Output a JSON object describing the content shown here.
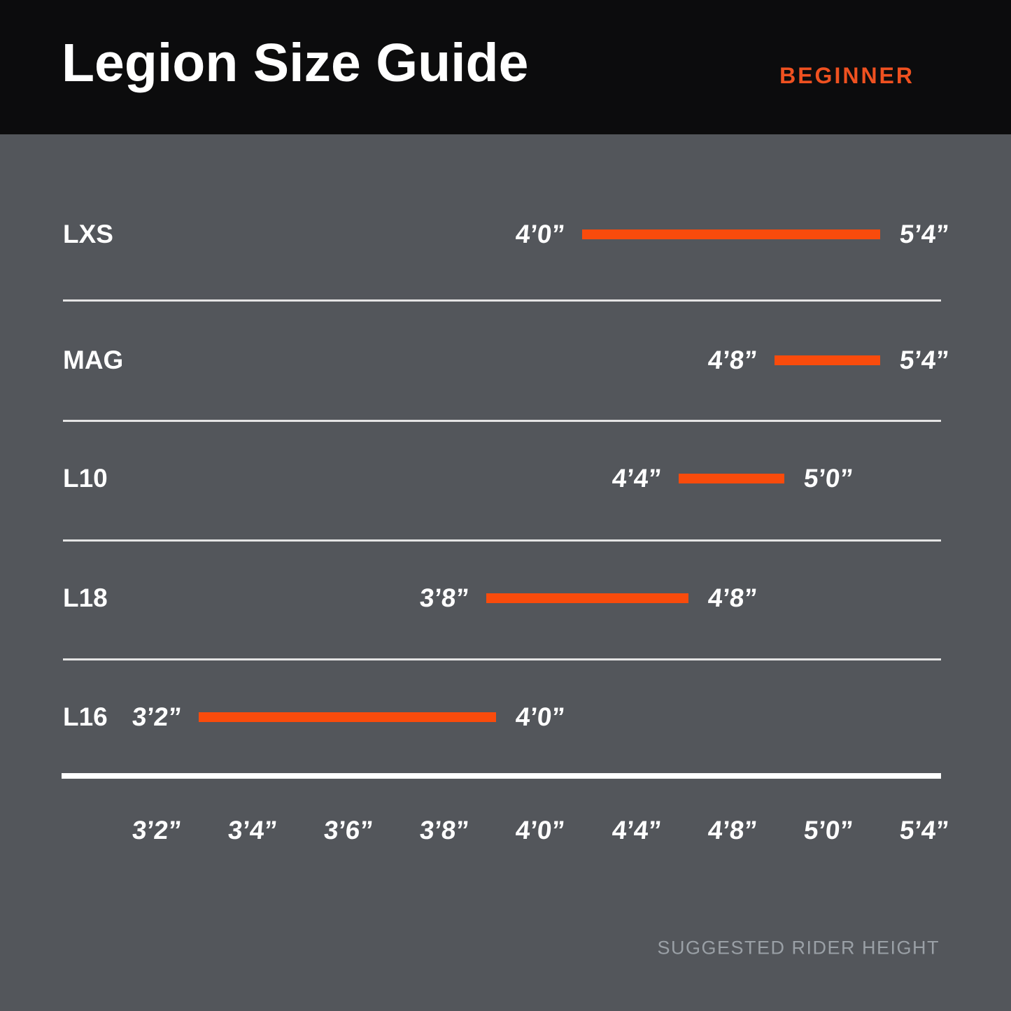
{
  "header": {
    "title": "Legion Size Guide",
    "badge": "BEGINNER"
  },
  "rows": [
    {
      "model": "LXS",
      "min": "4’0”",
      "max": "5’4”",
      "min_idx": 4,
      "max_idx": 8
    },
    {
      "model": "MAG",
      "min": "4’8”",
      "max": "5’4”",
      "min_idx": 6,
      "max_idx": 8
    },
    {
      "model": "L10",
      "min": "4’4”",
      "max": "5’0”",
      "min_idx": 5,
      "max_idx": 7
    },
    {
      "model": "L18",
      "min": "3’8”",
      "max": "4’8”",
      "min_idx": 3,
      "max_idx": 6
    },
    {
      "model": "L16",
      "min": "3’2”",
      "max": "4’0”",
      "min_idx": 0,
      "max_idx": 4
    }
  ],
  "axis": {
    "labels": [
      "3’2”",
      "3’4”",
      "3’6”",
      "3’8”",
      "4’0”",
      "4’4”",
      "4’8”",
      "5’0”",
      "5’4”"
    ]
  },
  "footer": {
    "axis_caption": "SUGGESTED RIDER HEIGHT"
  },
  "colors": {
    "background": "#53565b",
    "header_bg": "#0c0c0d",
    "bar_accent": "#f94b0c",
    "badge_accent": "#ef5120",
    "caption_text": "#9aa0a6",
    "text": "#ffffff"
  },
  "chart_data": {
    "type": "bar",
    "orientation": "horizontal-range",
    "title": "Legion Size Guide",
    "badge": "BEGINNER",
    "xlabel": "SUGGESTED RIDER HEIGHT",
    "x_ticks": [
      "3’2”",
      "3’4”",
      "3’6”",
      "3’8”",
      "4’0”",
      "4’4”",
      "4’8”",
      "5’0”",
      "5’4”"
    ],
    "categories": [
      "LXS",
      "MAG",
      "L10",
      "L18",
      "L16"
    ],
    "series": [
      {
        "name": "LXS",
        "range": [
          "4’0”",
          "5’4”"
        ]
      },
      {
        "name": "MAG",
        "range": [
          "4’8”",
          "5’4”"
        ]
      },
      {
        "name": "L10",
        "range": [
          "4’4”",
          "5’0”"
        ]
      },
      {
        "name": "L18",
        "range": [
          "3’8”",
          "4’8”"
        ]
      },
      {
        "name": "L16",
        "range": [
          "3’2”",
          "4’0”"
        ]
      }
    ],
    "bar_color": "#f94b0c",
    "grid": "row-dividers",
    "legend": "none"
  }
}
